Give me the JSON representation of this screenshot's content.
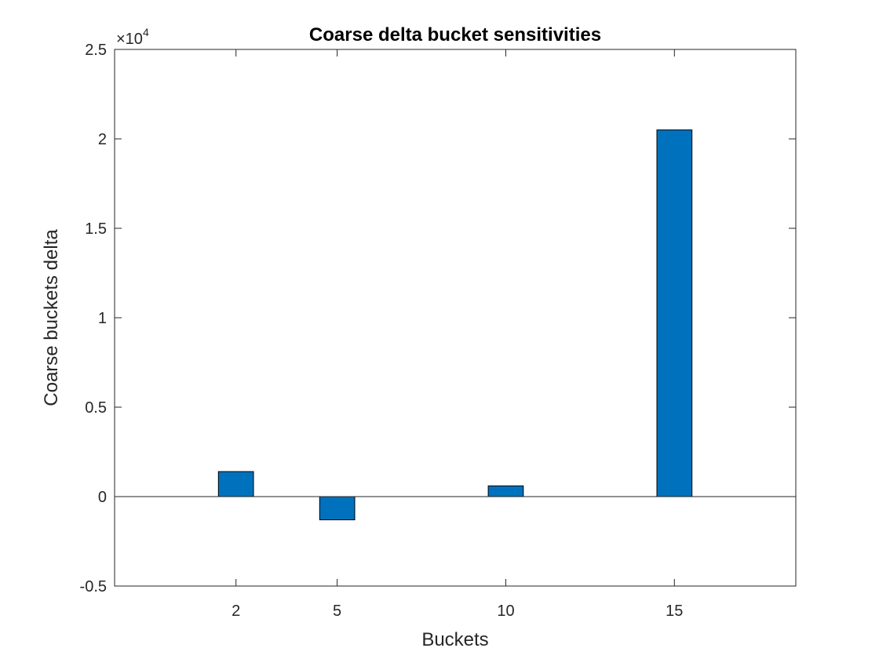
{
  "chart_data": {
    "type": "bar",
    "title": "Coarse delta bucket sensitivities",
    "xlabel": "Buckets",
    "ylabel": "Coarse buckets delta",
    "categories": [
      "2",
      "5",
      "10",
      "15"
    ],
    "x": [
      2,
      5,
      10,
      15
    ],
    "values": [
      1400,
      -1300,
      600,
      20500
    ],
    "xlim": [
      -1.6,
      18.6
    ],
    "ylim": [
      -5000,
      25000
    ],
    "yticks": [
      -5000,
      0,
      5000,
      10000,
      15000,
      20000,
      25000
    ],
    "ytick_labels": [
      "-0.5",
      "0",
      "0.5",
      "1",
      "1.5",
      "2",
      "2.5"
    ],
    "y_exponent_base": "×10",
    "y_exponent_power": "4",
    "bar_color": "#0072BD",
    "grid": false,
    "legend": "none"
  }
}
